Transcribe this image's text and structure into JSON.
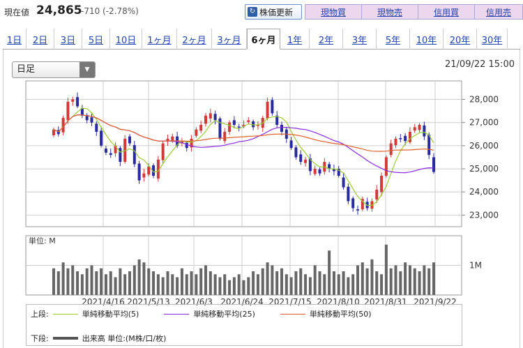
{
  "header": {
    "price_label": "現在値",
    "price_value": "24,865",
    "price_change": "-710 (-2.78%)",
    "refresh_label": "株価更新",
    "trade_buttons": [
      "現物買",
      "現物売",
      "信用買",
      "信用売"
    ]
  },
  "tabs": [
    "1日",
    "2日",
    "3日",
    "5日",
    "10日",
    "1ヶ月",
    "2ヶ月",
    "3ヶ月",
    "6ヶ月",
    "1年",
    "2年",
    "3年",
    "5年",
    "10年",
    "20年",
    "30年"
  ],
  "active_tab": "6ヶ月",
  "period_select": {
    "value": "日足"
  },
  "timestamp": "21/09/22 15:00",
  "colors": {
    "up": "#d23a3a",
    "down": "#2a2aa0",
    "ma5": "#9acd32",
    "ma25": "#8a2be2",
    "ma50": "#e0602a",
    "volume": "#666666"
  },
  "chart_data": {
    "type": "candlestick",
    "price_axis": {
      "ticks": [
        "28,000",
        "27,000",
        "26,000",
        "25,000",
        "24,000",
        "23,000"
      ],
      "ylim": [
        22500,
        28800
      ]
    },
    "volume_axis": {
      "label": "単位: M",
      "ticks": [
        "1M"
      ]
    },
    "x_labels": [
      "2021/4/16",
      "2021/5/13",
      "2021/6/3",
      "2021/6/24",
      "2021/7/15",
      "2021/8/10",
      "2021/8/31",
      "2021/9/22"
    ],
    "closes": [
      26700,
      26500,
      27200,
      27900,
      28000,
      27700,
      27300,
      27100,
      27000,
      26600,
      26000,
      25700,
      25600,
      26000,
      25300,
      26300,
      26100,
      25200,
      24500,
      24800,
      25100,
      24700,
      25400,
      26100,
      26300,
      26400,
      26000,
      26200,
      25900,
      26300,
      26700,
      26900,
      27300,
      27400,
      27100,
      26300,
      26600,
      27000,
      26900,
      26800,
      26900,
      27100,
      26800,
      26900,
      27200,
      27900,
      27400,
      26900,
      26600,
      26300,
      25900,
      25500,
      25300,
      25400,
      24900,
      25000,
      24800,
      25300,
      25000,
      24900,
      24700,
      24200,
      23600,
      23300,
      23200,
      23700,
      23300,
      23600,
      24100,
      24700,
      25500,
      26100,
      26300,
      26300,
      26200,
      26600,
      26800,
      26900,
      26400,
      25600,
      24865
    ],
    "ma5_note": "単純移動平均(5)",
    "volumes_M": [
      0.9,
      0.8,
      1.1,
      0.9,
      1.0,
      0.8,
      0.7,
      0.9,
      1.0,
      0.8,
      0.9,
      0.7,
      0.8,
      0.6,
      0.9,
      0.7,
      0.8,
      1.0,
      1.2,
      1.1,
      0.9,
      0.8,
      0.7,
      0.6,
      0.8,
      0.7,
      0.6,
      0.9,
      0.7,
      0.8,
      0.7,
      0.9,
      1.0,
      0.8,
      0.7,
      0.6,
      0.7,
      0.5,
      0.6,
      0.7,
      0.5,
      0.6,
      0.8,
      0.7,
      0.9,
      1.1,
      1.0,
      0.8,
      0.9,
      0.7,
      0.6,
      0.8,
      0.9,
      0.7,
      0.6,
      1.0,
      0.8,
      0.7,
      1.5,
      0.8,
      0.7,
      0.8,
      0.6,
      0.7,
      1.0,
      1.1,
      0.9,
      1.2,
      0.8,
      0.7,
      1.7,
      0.9,
      1.0,
      0.8,
      1.1,
      1.0,
      0.9,
      0.8,
      1.0,
      0.9,
      1.1
    ]
  },
  "legend": {
    "upper_label": "上段:",
    "ma5": "単純移動平均(5)",
    "ma25": "単純移動平均(25)",
    "ma50": "単純移動平均(50)",
    "lower_label": "下段:",
    "volume": "出来高 単位:(M株/口/枚)"
  }
}
